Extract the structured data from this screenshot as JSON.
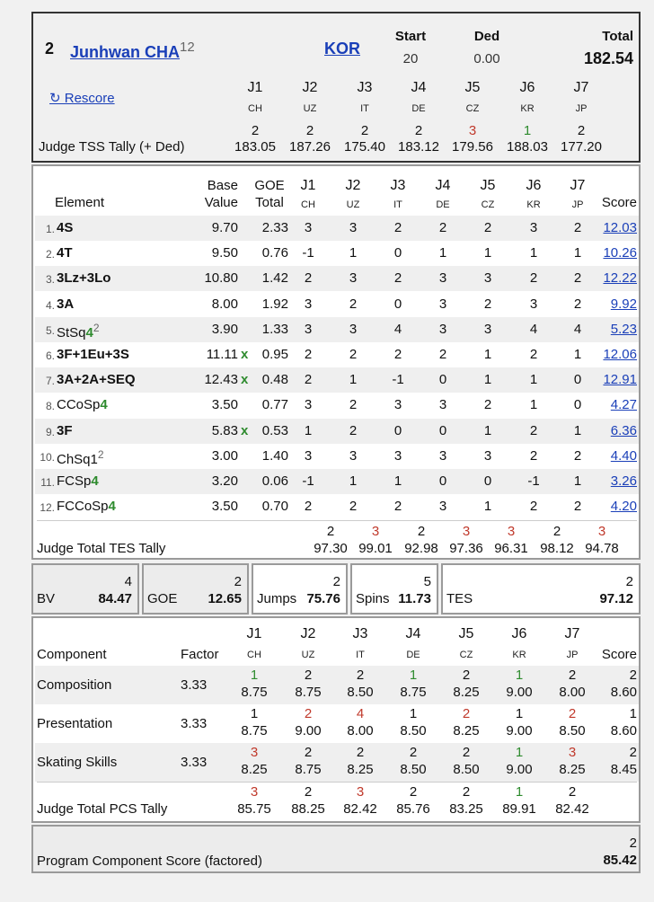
{
  "skater": {
    "rank": "2",
    "name": "Junhwan CHA",
    "name_sup": "12",
    "country": "KOR",
    "start_label": "Start",
    "start_value": "20",
    "ded_label": "Ded",
    "ded_value": "0.00",
    "total_label": "Total",
    "total_value": "182.54",
    "rescore": "↻ Rescore",
    "judges": [
      {
        "id": "J1",
        "nat": "CH"
      },
      {
        "id": "J2",
        "nat": "UZ"
      },
      {
        "id": "J3",
        "nat": "IT"
      },
      {
        "id": "J4",
        "nat": "DE"
      },
      {
        "id": "J5",
        "nat": "CZ"
      },
      {
        "id": "J6",
        "nat": "KR"
      },
      {
        "id": "J7",
        "nat": "JP"
      }
    ],
    "tss_label": "Judge TSS Tally (+ Ded)",
    "tss": [
      {
        "rank": "2",
        "value": "183.05",
        "color": "#111111"
      },
      {
        "rank": "2",
        "value": "187.26",
        "color": "#111111"
      },
      {
        "rank": "2",
        "value": "175.40",
        "color": "#111111"
      },
      {
        "rank": "2",
        "value": "183.12",
        "color": "#111111"
      },
      {
        "rank": "3",
        "value": "179.56",
        "color": "#c0392b"
      },
      {
        "rank": "1",
        "value": "188.03",
        "color": "#2e8b2e"
      },
      {
        "rank": "2",
        "value": "177.20",
        "color": "#111111"
      }
    ]
  },
  "elements": {
    "header": {
      "element": "Element",
      "base": "Base",
      "value": "Value",
      "goe": "GOE",
      "goe_total": "Total",
      "score": "Score"
    },
    "rows": [
      {
        "n": "1.",
        "name": "4S",
        "level": "",
        "sup": "",
        "bold": true,
        "bv": "9.70",
        "x": "",
        "goe": "2.33",
        "j": [
          "3",
          "3",
          "2",
          "2",
          "2",
          "3",
          "2"
        ],
        "score": "12.03"
      },
      {
        "n": "2.",
        "name": "4T",
        "level": "",
        "sup": "",
        "bold": true,
        "bv": "9.50",
        "x": "",
        "goe": "0.76",
        "j": [
          "-1",
          "1",
          "0",
          "1",
          "1",
          "1",
          "1"
        ],
        "score": "10.26"
      },
      {
        "n": "3.",
        "name": "3Lz+3Lo",
        "level": "",
        "sup": "",
        "bold": true,
        "bv": "10.80",
        "x": "",
        "goe": "1.42",
        "j": [
          "2",
          "3",
          "2",
          "3",
          "3",
          "2",
          "2"
        ],
        "score": "12.22"
      },
      {
        "n": "4.",
        "name": "3A",
        "level": "",
        "sup": "",
        "bold": true,
        "bv": "8.00",
        "x": "",
        "goe": "1.92",
        "j": [
          "3",
          "2",
          "0",
          "3",
          "2",
          "3",
          "2"
        ],
        "score": "9.92"
      },
      {
        "n": "5.",
        "name": "StSq",
        "level": "4",
        "sup": "2",
        "bold": false,
        "bv": "3.90",
        "x": "",
        "goe": "1.33",
        "j": [
          "3",
          "3",
          "4",
          "3",
          "3",
          "4",
          "4"
        ],
        "score": "5.23"
      },
      {
        "n": "6.",
        "name": "3F+1Eu+3S",
        "level": "",
        "sup": "",
        "bold": true,
        "bv": "11.11",
        "x": "x",
        "goe": "0.95",
        "j": [
          "2",
          "2",
          "2",
          "2",
          "1",
          "2",
          "1"
        ],
        "score": "12.06"
      },
      {
        "n": "7.",
        "name": "3A+2A+SEQ",
        "level": "",
        "sup": "",
        "bold": true,
        "bv": "12.43",
        "x": "x",
        "goe": "0.48",
        "j": [
          "2",
          "1",
          "-1",
          "0",
          "1",
          "1",
          "0"
        ],
        "score": "12.91"
      },
      {
        "n": "8.",
        "name": "CCoSp",
        "level": "4",
        "sup": "",
        "bold": false,
        "bv": "3.50",
        "x": "",
        "goe": "0.77",
        "j": [
          "3",
          "2",
          "3",
          "3",
          "2",
          "1",
          "0"
        ],
        "score": "4.27"
      },
      {
        "n": "9.",
        "name": "3F",
        "level": "",
        "sup": "",
        "bold": true,
        "bv": "5.83",
        "x": "x",
        "goe": "0.53",
        "j": [
          "1",
          "2",
          "0",
          "0",
          "1",
          "2",
          "1"
        ],
        "score": "6.36"
      },
      {
        "n": "10.",
        "name": "ChSq1",
        "level": "",
        "sup": "2",
        "bold": false,
        "bv": "3.00",
        "x": "",
        "goe": "1.40",
        "j": [
          "3",
          "3",
          "3",
          "3",
          "3",
          "2",
          "2"
        ],
        "score": "4.40"
      },
      {
        "n": "11.",
        "name": "FCSp",
        "level": "4",
        "sup": "",
        "bold": false,
        "bv": "3.20",
        "x": "",
        "goe": "0.06",
        "j": [
          "-1",
          "1",
          "1",
          "0",
          "0",
          "-1",
          "1"
        ],
        "score": "3.26"
      },
      {
        "n": "12.",
        "name": "FCCoSp",
        "level": "4",
        "sup": "",
        "bold": false,
        "bv": "3.50",
        "x": "",
        "goe": "0.70",
        "j": [
          "2",
          "2",
          "2",
          "3",
          "1",
          "2",
          "2"
        ],
        "score": "4.20"
      }
    ],
    "tes_label": "Judge Total TES Tally",
    "tes": [
      {
        "rank": "2",
        "value": "97.30",
        "color": "#111111"
      },
      {
        "rank": "3",
        "value": "99.01",
        "color": "#c0392b"
      },
      {
        "rank": "2",
        "value": "92.98",
        "color": "#111111"
      },
      {
        "rank": "3",
        "value": "97.36",
        "color": "#c0392b"
      },
      {
        "rank": "3",
        "value": "96.31",
        "color": "#c0392b"
      },
      {
        "rank": "2",
        "value": "98.12",
        "color": "#111111"
      },
      {
        "rank": "3",
        "value": "94.78",
        "color": "#c0392b"
      }
    ]
  },
  "summary": [
    {
      "rank": "4",
      "label": "BV",
      "value": "84.47"
    },
    {
      "rank": "2",
      "label": "GOE",
      "value": "12.65"
    },
    {
      "rank": "2",
      "label": "Jumps",
      "value": "75.76"
    },
    {
      "rank": "5",
      "label": "Spins",
      "value": "11.73"
    },
    {
      "rank": "2",
      "label": "TES",
      "value": "97.12"
    }
  ],
  "components": {
    "header": {
      "component": "Component",
      "factor": "Factor",
      "score": "Score"
    },
    "rows": [
      {
        "name": "Composition",
        "factor": "3.33",
        "j": [
          {
            "r": "1",
            "v": "8.75",
            "color": "#2e8b2e"
          },
          {
            "r": "2",
            "v": "8.75",
            "color": "#111111"
          },
          {
            "r": "2",
            "v": "8.50",
            "color": "#111111"
          },
          {
            "r": "1",
            "v": "8.75",
            "color": "#2e8b2e"
          },
          {
            "r": "2",
            "v": "8.25",
            "color": "#111111"
          },
          {
            "r": "1",
            "v": "9.00",
            "color": "#2e8b2e"
          },
          {
            "r": "2",
            "v": "8.00",
            "color": "#111111"
          }
        ],
        "score_rank": "2",
        "score": "8.60"
      },
      {
        "name": "Presentation",
        "factor": "3.33",
        "j": [
          {
            "r": "1",
            "v": "8.75",
            "color": "#111111"
          },
          {
            "r": "2",
            "v": "9.00",
            "color": "#c0392b"
          },
          {
            "r": "4",
            "v": "8.00",
            "color": "#c0392b"
          },
          {
            "r": "1",
            "v": "8.50",
            "color": "#111111"
          },
          {
            "r": "2",
            "v": "8.25",
            "color": "#c0392b"
          },
          {
            "r": "1",
            "v": "9.00",
            "color": "#111111"
          },
          {
            "r": "2",
            "v": "8.50",
            "color": "#c0392b"
          }
        ],
        "score_rank": "1",
        "score": "8.60"
      },
      {
        "name": "Skating Skills",
        "factor": "3.33",
        "j": [
          {
            "r": "3",
            "v": "8.25",
            "color": "#c0392b"
          },
          {
            "r": "2",
            "v": "8.75",
            "color": "#111111"
          },
          {
            "r": "2",
            "v": "8.25",
            "color": "#111111"
          },
          {
            "r": "2",
            "v": "8.50",
            "color": "#111111"
          },
          {
            "r": "2",
            "v": "8.50",
            "color": "#111111"
          },
          {
            "r": "1",
            "v": "9.00",
            "color": "#2e8b2e"
          },
          {
            "r": "3",
            "v": "8.25",
            "color": "#c0392b"
          }
        ],
        "score_rank": "2",
        "score": "8.45"
      }
    ],
    "pcs_label": "Judge Total PCS Tally",
    "pcs": [
      {
        "rank": "3",
        "value": "85.75",
        "color": "#c0392b"
      },
      {
        "rank": "2",
        "value": "88.25",
        "color": "#111111"
      },
      {
        "rank": "3",
        "value": "82.42",
        "color": "#c0392b"
      },
      {
        "rank": "2",
        "value": "85.76",
        "color": "#111111"
      },
      {
        "rank": "2",
        "value": "83.25",
        "color": "#111111"
      },
      {
        "rank": "1",
        "value": "89.91",
        "color": "#2e8b2e"
      },
      {
        "rank": "2",
        "value": "82.42",
        "color": "#111111"
      }
    ]
  },
  "program": {
    "label": "Program Component Score (factored)",
    "rank": "2",
    "value": "85.42"
  }
}
